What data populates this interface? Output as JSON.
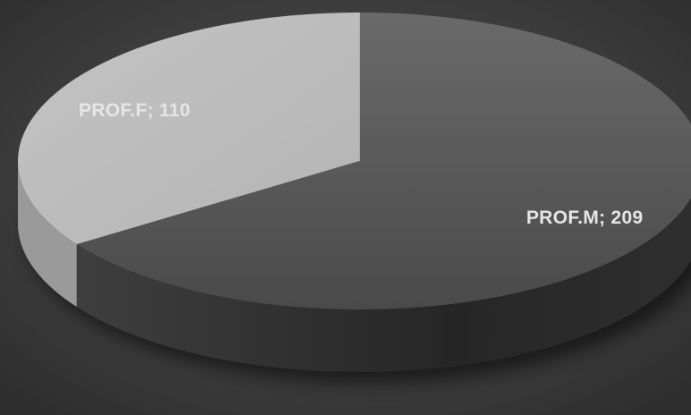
{
  "chart_data": {
    "type": "pie",
    "style": "3d",
    "title": "",
    "slices": [
      {
        "category": "PROF.F",
        "value": 110,
        "label": "PROF.F; 110",
        "color": "#c0c0c0",
        "side_color": "#9a9a9a"
      },
      {
        "category": "PROF.M",
        "value": 209,
        "label": "PROF.M; 209",
        "color": "#595959",
        "side_color": "#2c2c2c"
      }
    ],
    "legend": "none",
    "background": "#3c3c3c",
    "label_color": "#e6e6e6"
  }
}
